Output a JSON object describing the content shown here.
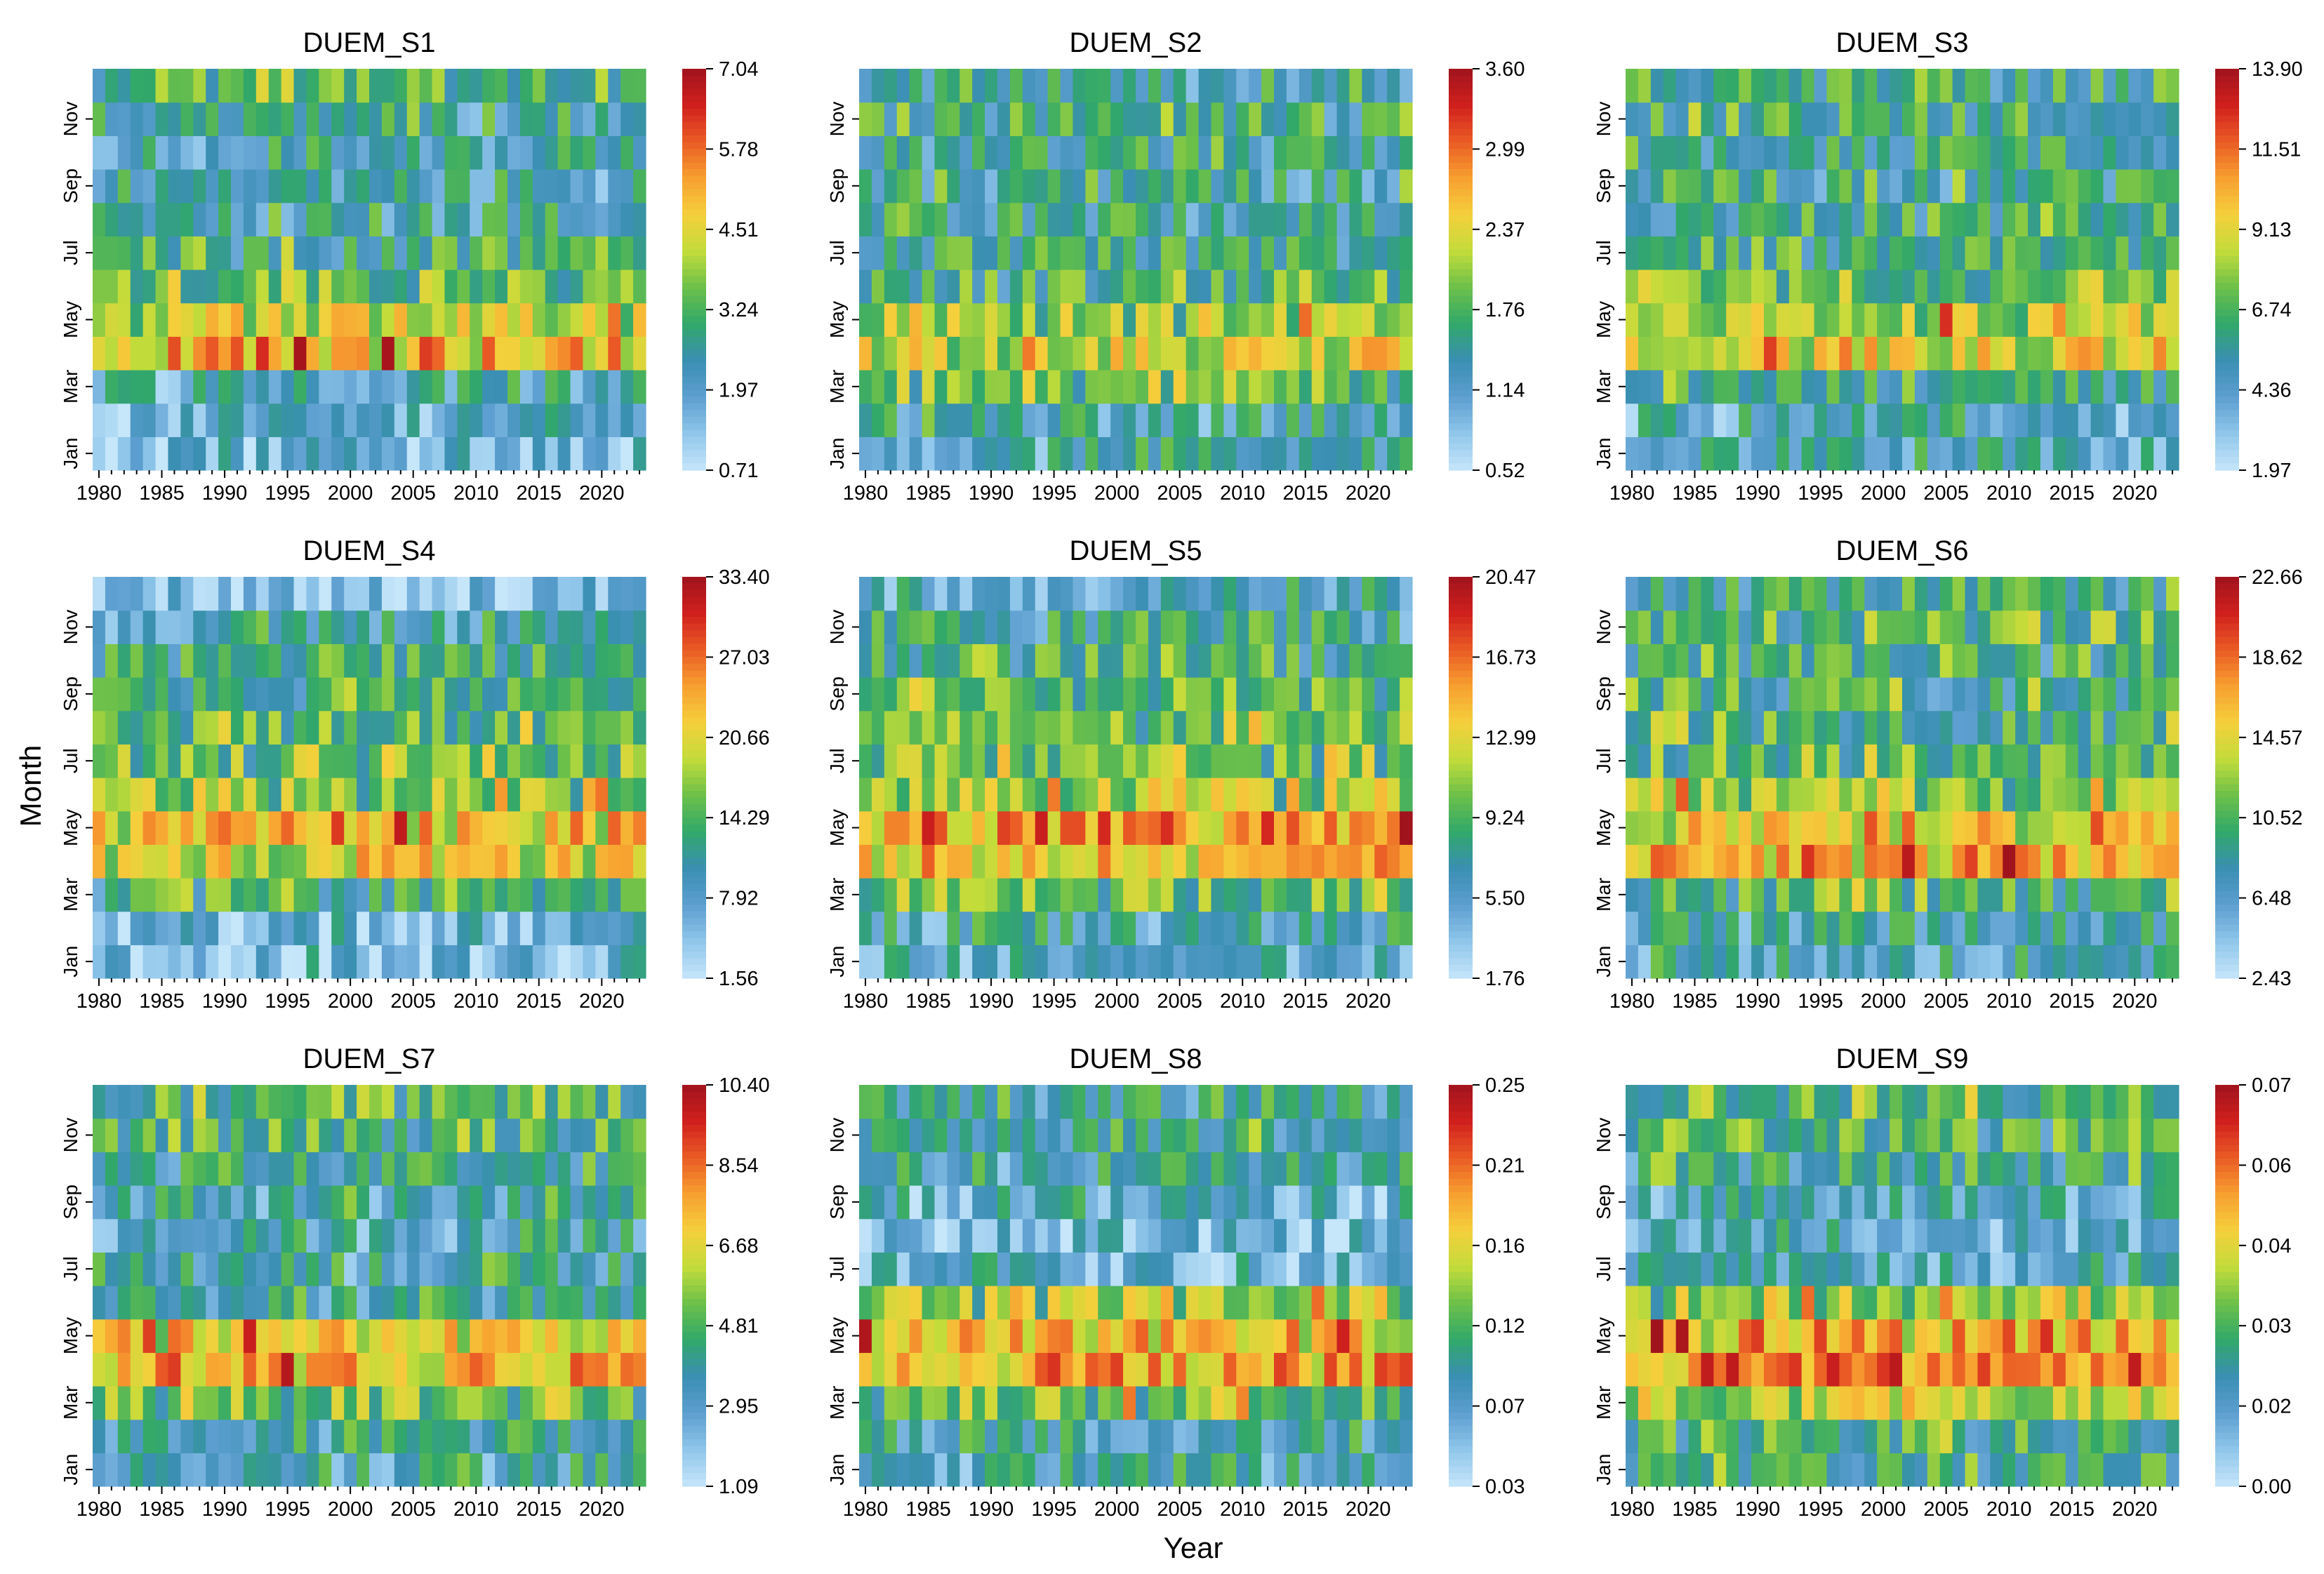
{
  "figure": {
    "shared_ylabel": "Month",
    "shared_xlabel": "Year"
  },
  "colormap": {
    "name": "blue-green-yellow-red",
    "stops": [
      "#c6e6fa",
      "#8fc6ea",
      "#5d9fd0",
      "#3a8fb3",
      "#31a86a",
      "#6cc04a",
      "#c2dc3a",
      "#f5cf3c",
      "#f7a030",
      "#ea5b25",
      "#d0201e",
      "#a0131c"
    ]
  },
  "chart_data": [
    {
      "type": "heatmap",
      "title": "DUEM_S1",
      "colorbar_ticks": [
        "0.71",
        "1.97",
        "3.24",
        "4.51",
        "5.78",
        "7.04"
      ],
      "vmin": 0.71,
      "vmax": 7.04,
      "monthly_level": [
        0.18,
        0.17,
        0.24,
        0.66,
        0.56,
        0.44,
        0.37,
        0.29,
        0.27,
        0.27,
        0.31,
        0.38
      ],
      "x_tick_labels": [
        "1980",
        "1985",
        "1990",
        "1995",
        "2000",
        "2005",
        "2010",
        "2015",
        "2020"
      ],
      "y_tick_labels": [
        "Jan",
        "Mar",
        "May",
        "Jul",
        "Sep",
        "Nov"
      ],
      "years": [
        1980,
        2023
      ],
      "months": 12,
      "seed": 11
    },
    {
      "type": "heatmap",
      "title": "DUEM_S2",
      "colorbar_ticks": [
        "0.52",
        "1.14",
        "1.76",
        "2.37",
        "2.99",
        "3.60"
      ],
      "vmin": 0.52,
      "vmax": 3.6,
      "monthly_level": [
        0.26,
        0.27,
        0.44,
        0.58,
        0.5,
        0.38,
        0.34,
        0.31,
        0.31,
        0.33,
        0.36,
        0.3
      ],
      "x_tick_labels": [
        "1980",
        "1985",
        "1990",
        "1995",
        "2000",
        "2005",
        "2010",
        "2015",
        "2020"
      ],
      "y_tick_labels": [
        "Jan",
        "Mar",
        "May",
        "Jul",
        "Sep",
        "Nov"
      ],
      "years": [
        1980,
        2023
      ],
      "months": 12,
      "seed": 23
    },
    {
      "type": "heatmap",
      "title": "DUEM_S3",
      "colorbar_ticks": [
        "1.97",
        "4.36",
        "6.74",
        "9.13",
        "11.51",
        "13.90"
      ],
      "vmin": 1.97,
      "vmax": 13.9,
      "monthly_level": [
        0.23,
        0.24,
        0.34,
        0.58,
        0.52,
        0.42,
        0.36,
        0.34,
        0.33,
        0.34,
        0.36,
        0.32
      ],
      "x_tick_labels": [
        "1980",
        "1985",
        "1990",
        "1995",
        "2000",
        "2005",
        "2010",
        "2015",
        "2020"
      ],
      "y_tick_labels": [
        "Jan",
        "Mar",
        "May",
        "Jul",
        "Sep",
        "Nov"
      ],
      "years": [
        1980,
        2023
      ],
      "months": 12,
      "seed": 37
    },
    {
      "type": "heatmap",
      "title": "DUEM_S4",
      "colorbar_ticks": [
        "1.56",
        "7.92",
        "14.29",
        "20.66",
        "27.03",
        "33.40"
      ],
      "vmin": 1.56,
      "vmax": 33.4,
      "monthly_level": [
        0.13,
        0.16,
        0.35,
        0.56,
        0.63,
        0.48,
        0.44,
        0.42,
        0.36,
        0.33,
        0.25,
        0.14
      ],
      "x_tick_labels": [
        "1980",
        "1985",
        "1990",
        "1995",
        "2000",
        "2005",
        "2010",
        "2015",
        "2020"
      ],
      "y_tick_labels": [
        "Jan",
        "Mar",
        "May",
        "Jul",
        "Sep",
        "Nov"
      ],
      "years": [
        1980,
        2023
      ],
      "months": 12,
      "seed": 41
    },
    {
      "type": "heatmap",
      "title": "DUEM_S5",
      "colorbar_ticks": [
        "1.76",
        "5.50",
        "9.24",
        "12.99",
        "16.73",
        "20.47"
      ],
      "vmin": 1.76,
      "vmax": 20.47,
      "monthly_level": [
        0.2,
        0.27,
        0.45,
        0.66,
        0.7,
        0.5,
        0.47,
        0.46,
        0.42,
        0.38,
        0.31,
        0.25
      ],
      "x_tick_labels": [
        "1980",
        "1985",
        "1990",
        "1995",
        "2000",
        "2005",
        "2010",
        "2015",
        "2020"
      ],
      "y_tick_labels": [
        "Jan",
        "Mar",
        "May",
        "Jul",
        "Sep",
        "Nov"
      ],
      "years": [
        1980,
        2023
      ],
      "months": 12,
      "seed": 53
    },
    {
      "type": "heatmap",
      "title": "DUEM_S6",
      "colorbar_ticks": [
        "2.43",
        "6.48",
        "10.52",
        "14.57",
        "18.62",
        "22.66"
      ],
      "vmin": 2.43,
      "vmax": 22.66,
      "monthly_level": [
        0.27,
        0.3,
        0.42,
        0.68,
        0.62,
        0.46,
        0.42,
        0.39,
        0.37,
        0.35,
        0.37,
        0.34
      ],
      "x_tick_labels": [
        "1980",
        "1985",
        "1990",
        "1995",
        "2000",
        "2005",
        "2010",
        "2015",
        "2020"
      ],
      "y_tick_labels": [
        "Jan",
        "Mar",
        "May",
        "Jul",
        "Sep",
        "Nov"
      ],
      "years": [
        1980,
        2023
      ],
      "months": 12,
      "seed": 67
    },
    {
      "type": "heatmap",
      "title": "DUEM_S7",
      "colorbar_ticks": [
        "1.09",
        "2.95",
        "4.81",
        "6.68",
        "8.54",
        "10.40"
      ],
      "vmin": 1.09,
      "vmax": 10.4,
      "monthly_level": [
        0.27,
        0.3,
        0.44,
        0.68,
        0.6,
        0.3,
        0.27,
        0.25,
        0.27,
        0.33,
        0.38,
        0.4
      ],
      "x_tick_labels": [
        "1980",
        "1985",
        "1990",
        "1995",
        "2000",
        "2005",
        "2010",
        "2015",
        "2020"
      ],
      "y_tick_labels": [
        "Jan",
        "Mar",
        "May",
        "Jul",
        "Sep",
        "Nov"
      ],
      "years": [
        1980,
        2023
      ],
      "months": 12,
      "seed": 79
    },
    {
      "type": "heatmap",
      "title": "DUEM_S8",
      "colorbar_ticks": [
        "0.03",
        "0.07",
        "0.12",
        "0.16",
        "0.21",
        "0.25"
      ],
      "vmin": 0.03,
      "vmax": 0.25,
      "monthly_level": [
        0.26,
        0.28,
        0.46,
        0.72,
        0.64,
        0.5,
        0.18,
        0.15,
        0.2,
        0.3,
        0.33,
        0.3
      ],
      "x_tick_labels": [
        "1980",
        "1985",
        "1990",
        "1995",
        "2000",
        "2005",
        "2010",
        "2015",
        "2020"
      ],
      "y_tick_labels": [
        "Jan",
        "Mar",
        "May",
        "Jul",
        "Sep",
        "Nov"
      ],
      "years": [
        1980,
        2023
      ],
      "months": 12,
      "seed": 83
    },
    {
      "type": "heatmap",
      "title": "DUEM_S9",
      "colorbar_ticks": [
        "0.00",
        "0.02",
        "0.03",
        "0.04",
        "0.06",
        "0.07"
      ],
      "vmin": 0.0,
      "vmax": 0.07,
      "monthly_level": [
        0.34,
        0.38,
        0.52,
        0.74,
        0.66,
        0.48,
        0.22,
        0.2,
        0.24,
        0.34,
        0.38,
        0.4
      ],
      "x_tick_labels": [
        "1980",
        "1985",
        "1990",
        "1995",
        "2000",
        "2005",
        "2010",
        "2015",
        "2020"
      ],
      "y_tick_labels": [
        "Jan",
        "Mar",
        "May",
        "Jul",
        "Sep",
        "Nov"
      ],
      "years": [
        1980,
        2023
      ],
      "months": 12,
      "seed": 97
    }
  ]
}
